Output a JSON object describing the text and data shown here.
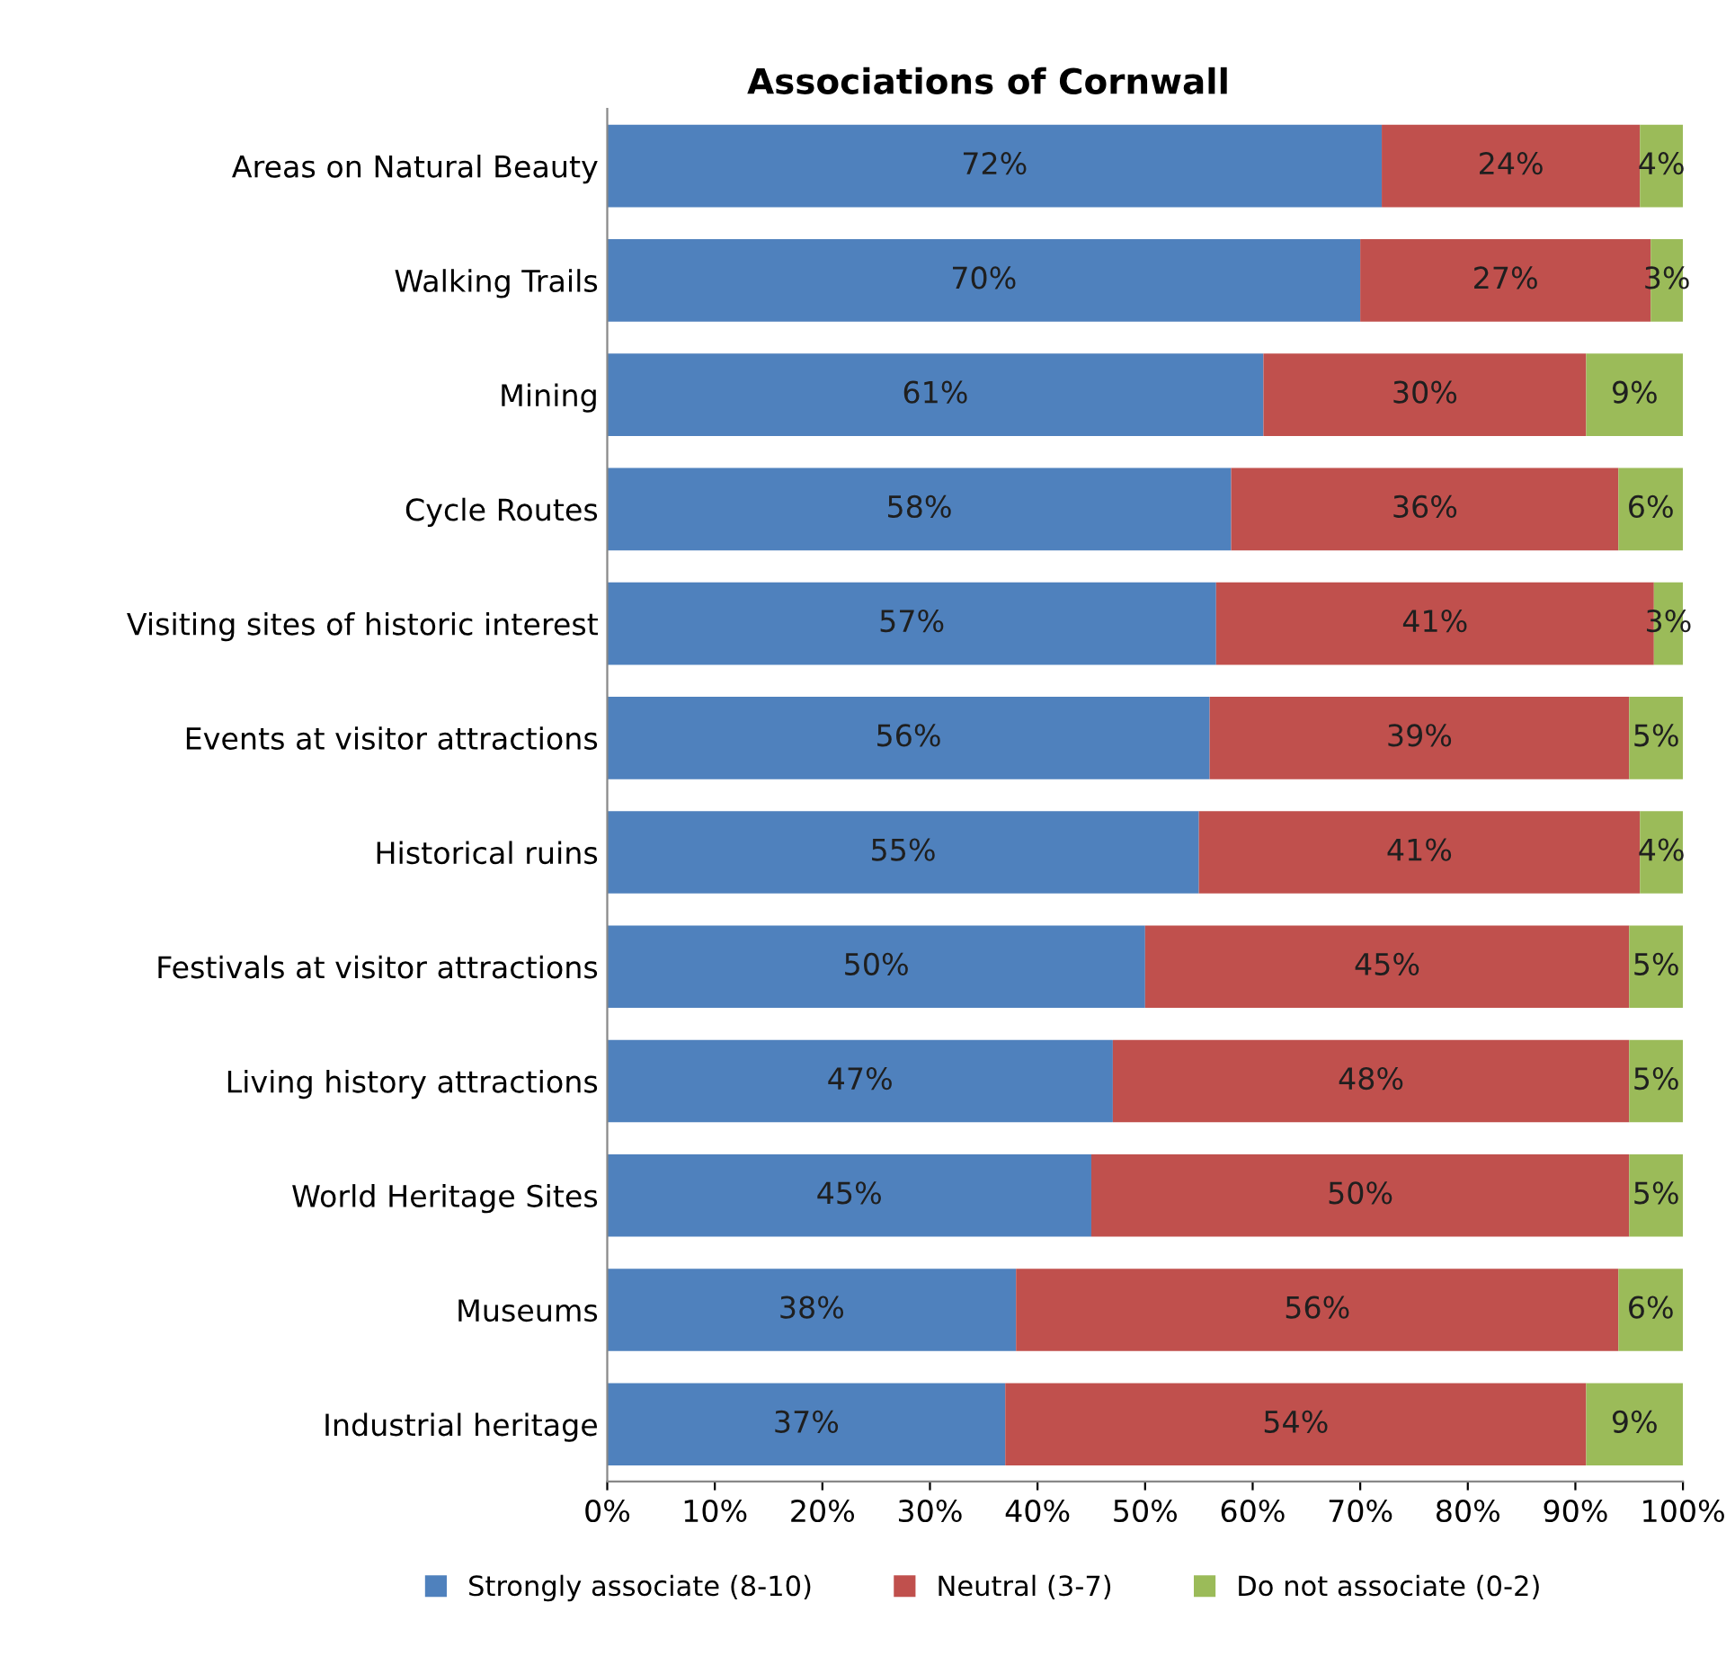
{
  "chart_data": {
    "type": "bar",
    "orientation": "horizontal",
    "stacked": true,
    "title": "Associations of Cornwall",
    "categories": [
      "Areas on Natural Beauty",
      "Walking Trails",
      "Mining",
      "Cycle Routes",
      "Visiting sites of historic interest",
      "Events at visitor attractions",
      "Historical ruins",
      "Festivals at visitor attractions",
      "Living history attractions",
      "World Heritage Sites",
      "Museums",
      "Industrial heritage"
    ],
    "series": [
      {
        "name": "Strongly associate (8-10)",
        "color": "#4f81bd",
        "values": [
          72,
          70,
          61,
          58,
          56.6,
          56,
          55,
          50,
          47,
          45,
          38,
          37
        ],
        "value_labels": [
          "72%",
          "70%",
          "61%",
          "58%",
          "57%",
          "56%",
          "55%",
          "50%",
          "47%",
          "45%",
          "38%",
          "37%"
        ]
      },
      {
        "name": "Neutral (3-7)",
        "color": "#c0504d",
        "values": [
          24,
          27,
          30,
          36,
          40.7,
          39,
          41,
          45,
          48,
          50,
          56,
          54
        ],
        "value_labels": [
          "24%",
          "27%",
          "30%",
          "36%",
          "41%",
          "39%",
          "41%",
          "45%",
          "48%",
          "50%",
          "56%",
          "54%"
        ]
      },
      {
        "name": "Do not associate (0-2)",
        "color": "#9bbb59",
        "values": [
          4,
          3,
          9,
          6,
          2.7,
          5,
          4,
          5,
          5,
          5,
          6,
          9
        ],
        "value_labels": [
          "4%",
          "3%",
          "9%",
          "6%",
          "3%",
          "5%",
          "4%",
          "5%",
          "5%",
          "5%",
          "6%",
          "9%"
        ]
      }
    ],
    "xlim": [
      0,
      100
    ],
    "xticks": [
      {
        "value": 0,
        "label": "0%"
      },
      {
        "value": 10,
        "label": "10%"
      },
      {
        "value": 20,
        "label": "20%"
      },
      {
        "value": 30,
        "label": "30%"
      },
      {
        "value": 40,
        "label": "40%"
      },
      {
        "value": 50,
        "label": "50%"
      },
      {
        "value": 60,
        "label": "60%"
      },
      {
        "value": 70,
        "label": "70%"
      },
      {
        "value": 80,
        "label": "80%"
      },
      {
        "value": 90,
        "label": "90%"
      },
      {
        "value": 100,
        "label": "100%"
      }
    ],
    "grid": false,
    "legend": "bottom"
  }
}
